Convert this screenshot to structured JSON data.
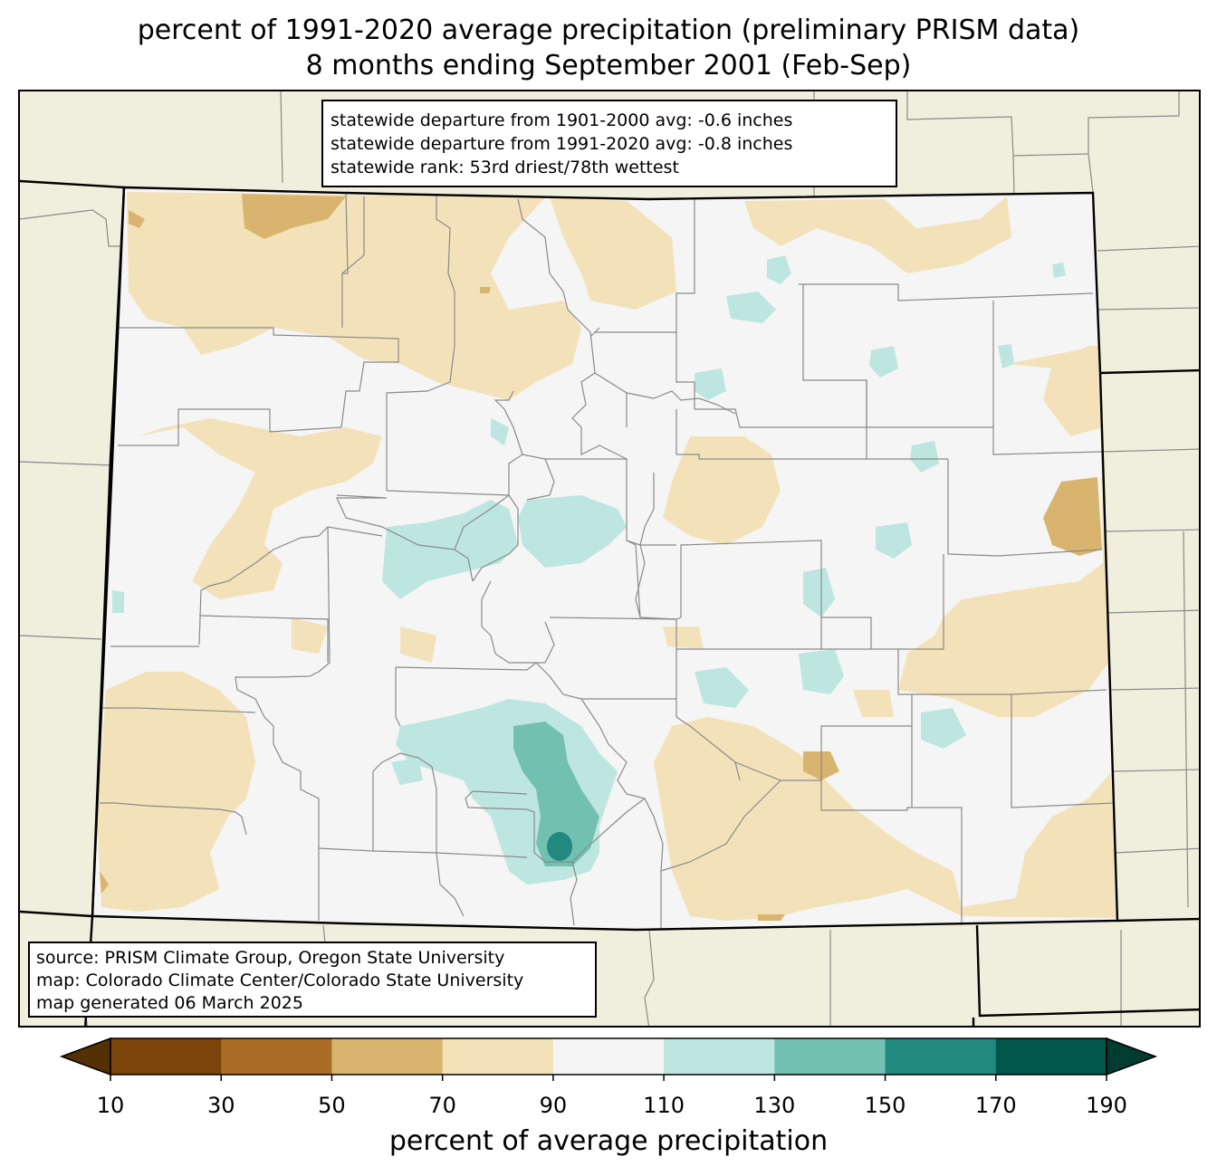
{
  "title": {
    "line1": "percent of 1991-2020 average precipitation (preliminary PRISM data)",
    "line2": "8 months ending September 2001 (Feb-Sep)"
  },
  "stats": {
    "line1": "statewide departure from 1901-2000 avg: -0.6 inches",
    "line2": "statewide departure from 1991-2020 avg: -0.8 inches",
    "line3": "statewide rank: 53rd driest/78th wettest"
  },
  "source": {
    "line1": "source: PRISM Climate Group, Oregon State University",
    "line2": "map: Colorado Climate Center/Colorado State University",
    "line3": "map generated 06 March 2025"
  },
  "colorbar": {
    "label": "percent of average precipitation",
    "ticks": [
      "10",
      "30",
      "50",
      "70",
      "90",
      "110",
      "130",
      "150",
      "170",
      "190"
    ],
    "under_color": "#543005",
    "over_color": "#003c30",
    "colors": [
      "#7b4209",
      "#a96c24",
      "#d9b46e",
      "#f3e2b9",
      "#f4f5f4",
      "#bde6e0",
      "#71c0b2",
      "#218980",
      "#00564a"
    ]
  },
  "colors": {
    "land_outside": "#f0eedc",
    "state_fill": "#f4f5f4",
    "county_line": "#8a8a8a",
    "border_line": "#000000"
  }
}
